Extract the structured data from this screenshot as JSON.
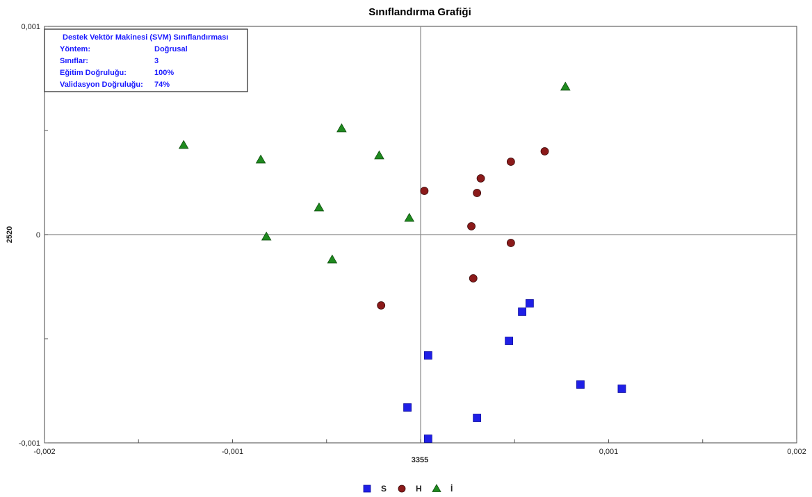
{
  "chart_data": {
    "type": "scatter",
    "title": "Sınıflandırma Grafiği",
    "xlabel": "3355",
    "ylabel": "2520",
    "xlim": [
      -0.002,
      0.002
    ],
    "ylim": [
      -0.001,
      0.001
    ],
    "x_ticks": [
      {
        "value": -0.002,
        "label": "-0,002"
      },
      {
        "value": -0.001,
        "label": "-0,001"
      },
      {
        "value": 0.001,
        "label": "0,001"
      },
      {
        "value": 0.002,
        "label": "0,002"
      }
    ],
    "y_ticks": [
      {
        "value": 0.001,
        "label": "0,001"
      },
      {
        "value": 0,
        "label": "0"
      },
      {
        "value": -0.001,
        "label": "-0,001"
      }
    ],
    "grid": false,
    "legend_position": "bottom-center",
    "info_box": {
      "title": "Destek Vektör Makinesi (SVM) Sınıflandırması",
      "rows": [
        {
          "key": "Yöntem:",
          "value": "Doğrusal"
        },
        {
          "key": "Sınıflar:",
          "value": "3"
        },
        {
          "key": "Eğitim Doğruluğu:",
          "value": "100%"
        },
        {
          "key": "Validasyon Doğruluğu:",
          "value": "74%"
        }
      ]
    },
    "series": [
      {
        "name": "S",
        "marker": "square",
        "color": "#1f1fe6",
        "points": [
          {
            "x": 4e-05,
            "y": -0.00058
          },
          {
            "x": 0.00047,
            "y": -0.00051
          },
          {
            "x": 0.00054,
            "y": -0.00037
          },
          {
            "x": 0.00058,
            "y": -0.00033
          },
          {
            "x": 0.00085,
            "y": -0.00072
          },
          {
            "x": 0.00107,
            "y": -0.00074
          },
          {
            "x": -7e-05,
            "y": -0.00083
          },
          {
            "x": 0.0003,
            "y": -0.00088
          },
          {
            "x": 4e-05,
            "y": -0.00098
          }
        ]
      },
      {
        "name": "H",
        "marker": "circle",
        "color": "#8b1a1a",
        "points": [
          {
            "x": 2e-05,
            "y": 0.00021
          },
          {
            "x": 0.00032,
            "y": 0.00027
          },
          {
            "x": 0.0003,
            "y": 0.0002
          },
          {
            "x": 0.00048,
            "y": 0.00035
          },
          {
            "x": 0.00066,
            "y": 0.0004
          },
          {
            "x": 0.00027,
            "y": 4e-05
          },
          {
            "x": 0.00048,
            "y": -4e-05
          },
          {
            "x": 0.00028,
            "y": -0.00021
          },
          {
            "x": -0.00021,
            "y": -0.00034
          }
        ]
      },
      {
        "name": "İ",
        "marker": "triangle",
        "color": "#1f8a1f",
        "points": [
          {
            "x": 0.00077,
            "y": 0.00071
          },
          {
            "x": -0.00042,
            "y": 0.00051
          },
          {
            "x": -0.00126,
            "y": 0.00043
          },
          {
            "x": -0.00085,
            "y": 0.00036
          },
          {
            "x": -0.00022,
            "y": 0.00038
          },
          {
            "x": -0.00054,
            "y": 0.00013
          },
          {
            "x": -6e-05,
            "y": 8e-05
          },
          {
            "x": -0.00082,
            "y": -1e-05
          },
          {
            "x": -0.00047,
            "y": -0.00012
          }
        ]
      }
    ]
  }
}
